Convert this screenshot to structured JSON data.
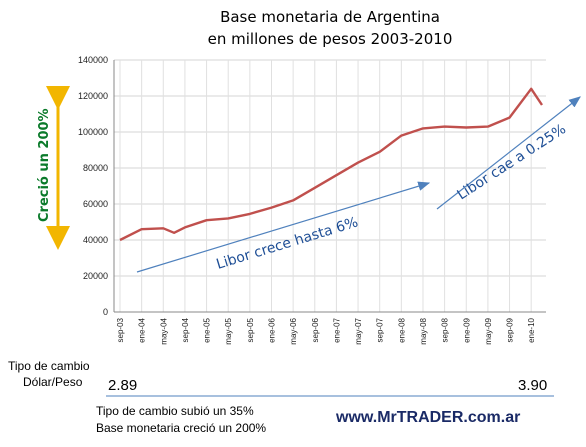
{
  "chart_data": {
    "type": "line",
    "title_line1": "Base monetaria de Argentina",
    "title_line2": "en millones de pesos 2003-2010",
    "ylim": [
      0,
      140000
    ],
    "yticks": [
      "0",
      "20000",
      "40000",
      "60000",
      "80000",
      "100000",
      "120000",
      "140000"
    ],
    "categories": [
      "sep-03",
      "ene-04",
      "may-04",
      "sep-04",
      "ene-05",
      "may-05",
      "sep-05",
      "ene-06",
      "may-06",
      "sep-06",
      "ene-07",
      "may-07",
      "sep-07",
      "ene-08",
      "may-08",
      "sep-08",
      "ene-09",
      "may-09",
      "sep-09",
      "ene-10"
    ],
    "series": [
      {
        "color": "#c0504d",
        "x": [
          "sep-03",
          "ene-04",
          "may-04",
          "jul-04",
          "sep-04",
          "ene-05",
          "may-05",
          "sep-05",
          "ene-06",
          "may-06",
          "sep-06",
          "ene-07",
          "may-07",
          "sep-07",
          "ene-08",
          "may-08",
          "sep-08",
          "ene-09",
          "may-09",
          "sep-09",
          "ene-10",
          "mar-10"
        ],
        "values": [
          40000,
          46000,
          46500,
          44000,
          47000,
          51000,
          52000,
          54500,
          58000,
          62000,
          69000,
          76000,
          83000,
          89000,
          98000,
          102000,
          103000,
          102500,
          103000,
          108000,
          124000,
          115000
        ]
      }
    ]
  },
  "annotations": {
    "side_label": "Creció un 200%",
    "arrow1_label": "Libor crece   hasta  6%",
    "arrow2_label": "Libor  cae  a  0.25%"
  },
  "footer": {
    "tipo_label_line1": "Tipo de cambio",
    "tipo_label_line2": "Dólar/Peso",
    "start_value": "2.89",
    "end_value": "3.90",
    "note_line1": "Tipo de cambio subió un 35%",
    "note_line2": "Base monetaria creció un 200%",
    "url": "www.MrTRADER.com.ar"
  },
  "colors": {
    "series": "#c0504d",
    "arrows": "#4f81bd",
    "side_arrow": "#f2b600",
    "side_text": "#0a7a2a"
  }
}
